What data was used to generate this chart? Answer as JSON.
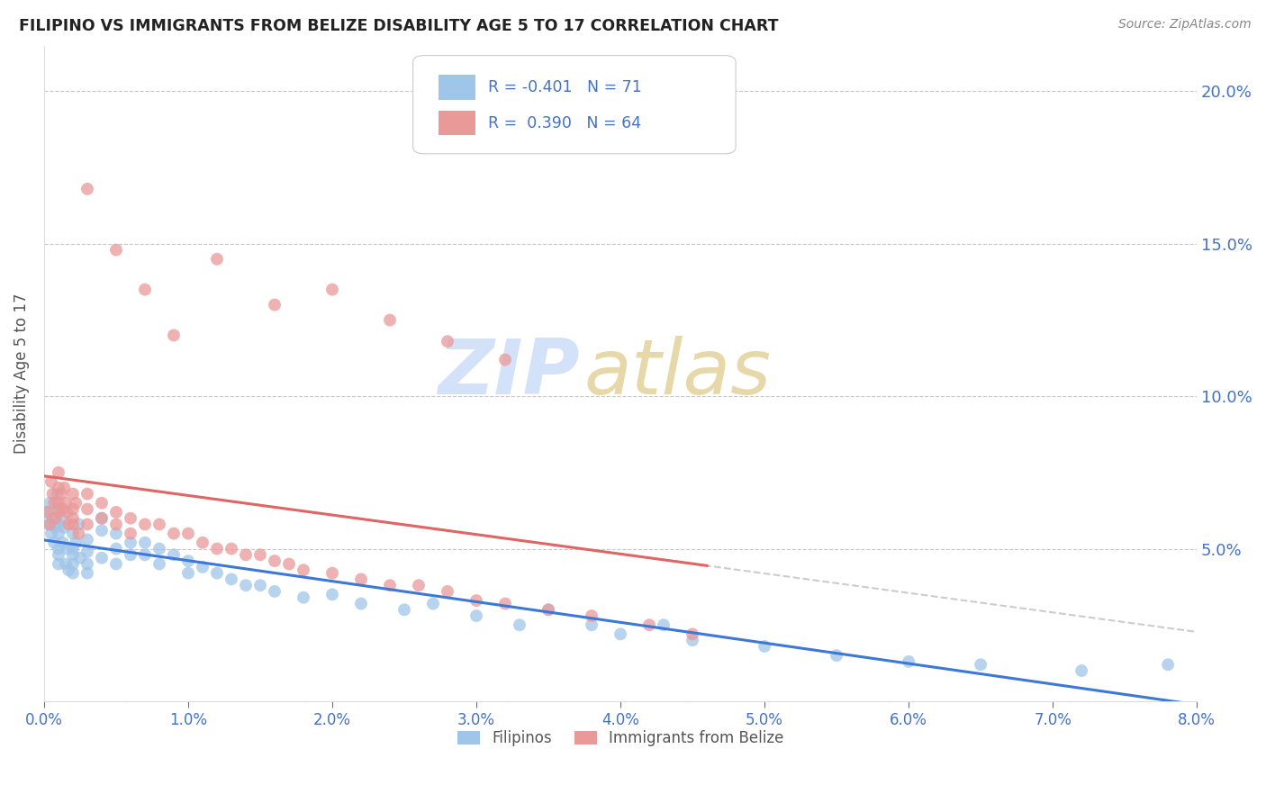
{
  "title": "FILIPINO VS IMMIGRANTS FROM BELIZE DISABILITY AGE 5 TO 17 CORRELATION CHART",
  "source": "Source: ZipAtlas.com",
  "ylabel": "Disability Age 5 to 17",
  "x_min": 0.0,
  "x_max": 0.08,
  "y_min": 0.0,
  "y_max": 0.215,
  "blue_color": "#9fc5e8",
  "pink_color": "#ea9999",
  "blue_line_color": "#3c78d8",
  "pink_line_color": "#e06666",
  "dashed_line_color": "#c0c0c0",
  "blue_R": -0.401,
  "blue_N": 71,
  "pink_R": 0.39,
  "pink_N": 64,
  "legend_text_color": "#4472c4",
  "axis_tick_color": "#4472c4",
  "background_color": "#ffffff",
  "grid_color": "#c0c0c0",
  "watermark_zip_color": "#c9daf8",
  "watermark_atlas_color": "#d9c47a",
  "blue_scatter_x": [
    0.0002,
    0.0003,
    0.0004,
    0.0005,
    0.0006,
    0.0007,
    0.0008,
    0.0009,
    0.001,
    0.001,
    0.001,
    0.001,
    0.001,
    0.001,
    0.0012,
    0.0013,
    0.0014,
    0.0015,
    0.0016,
    0.0017,
    0.002,
    0.002,
    0.002,
    0.002,
    0.002,
    0.0022,
    0.0024,
    0.0025,
    0.003,
    0.003,
    0.003,
    0.003,
    0.004,
    0.004,
    0.004,
    0.005,
    0.005,
    0.005,
    0.006,
    0.006,
    0.007,
    0.007,
    0.008,
    0.008,
    0.009,
    0.01,
    0.01,
    0.011,
    0.012,
    0.013,
    0.014,
    0.015,
    0.016,
    0.018,
    0.02,
    0.022,
    0.025,
    0.027,
    0.03,
    0.033,
    0.035,
    0.038,
    0.04,
    0.043,
    0.045,
    0.05,
    0.055,
    0.06,
    0.065,
    0.072,
    0.078
  ],
  "blue_scatter_y": [
    0.062,
    0.058,
    0.065,
    0.055,
    0.06,
    0.052,
    0.057,
    0.068,
    0.063,
    0.058,
    0.055,
    0.05,
    0.048,
    0.045,
    0.06,
    0.052,
    0.057,
    0.045,
    0.05,
    0.043,
    0.055,
    0.05,
    0.048,
    0.045,
    0.042,
    0.052,
    0.058,
    0.047,
    0.053,
    0.049,
    0.045,
    0.042,
    0.06,
    0.056,
    0.047,
    0.055,
    0.05,
    0.045,
    0.052,
    0.048,
    0.052,
    0.048,
    0.05,
    0.045,
    0.048,
    0.046,
    0.042,
    0.044,
    0.042,
    0.04,
    0.038,
    0.038,
    0.036,
    0.034,
    0.035,
    0.032,
    0.03,
    0.032,
    0.028,
    0.025,
    0.03,
    0.025,
    0.022,
    0.025,
    0.02,
    0.018,
    0.015,
    0.013,
    0.012,
    0.01,
    0.012
  ],
  "pink_scatter_x": [
    0.0002,
    0.0004,
    0.0005,
    0.0006,
    0.0007,
    0.0008,
    0.001,
    0.001,
    0.001,
    0.001,
    0.0012,
    0.0013,
    0.0014,
    0.0015,
    0.0016,
    0.0017,
    0.002,
    0.002,
    0.002,
    0.002,
    0.0022,
    0.0024,
    0.003,
    0.003,
    0.003,
    0.004,
    0.004,
    0.005,
    0.005,
    0.006,
    0.006,
    0.007,
    0.008,
    0.009,
    0.01,
    0.011,
    0.012,
    0.013,
    0.014,
    0.015,
    0.016,
    0.017,
    0.018,
    0.02,
    0.022,
    0.024,
    0.026,
    0.028,
    0.03,
    0.032,
    0.035,
    0.038,
    0.042,
    0.045,
    0.003,
    0.005,
    0.007,
    0.009,
    0.012,
    0.016,
    0.02,
    0.024,
    0.028,
    0.032
  ],
  "pink_scatter_y": [
    0.062,
    0.058,
    0.072,
    0.068,
    0.065,
    0.06,
    0.075,
    0.07,
    0.065,
    0.062,
    0.068,
    0.063,
    0.07,
    0.065,
    0.062,
    0.058,
    0.068,
    0.063,
    0.06,
    0.058,
    0.065,
    0.055,
    0.068,
    0.063,
    0.058,
    0.065,
    0.06,
    0.062,
    0.058,
    0.06,
    0.055,
    0.058,
    0.058,
    0.055,
    0.055,
    0.052,
    0.05,
    0.05,
    0.048,
    0.048,
    0.046,
    0.045,
    0.043,
    0.042,
    0.04,
    0.038,
    0.038,
    0.036,
    0.033,
    0.032,
    0.03,
    0.028,
    0.025,
    0.022,
    0.168,
    0.148,
    0.135,
    0.12,
    0.145,
    0.13,
    0.135,
    0.125,
    0.118,
    0.112
  ]
}
